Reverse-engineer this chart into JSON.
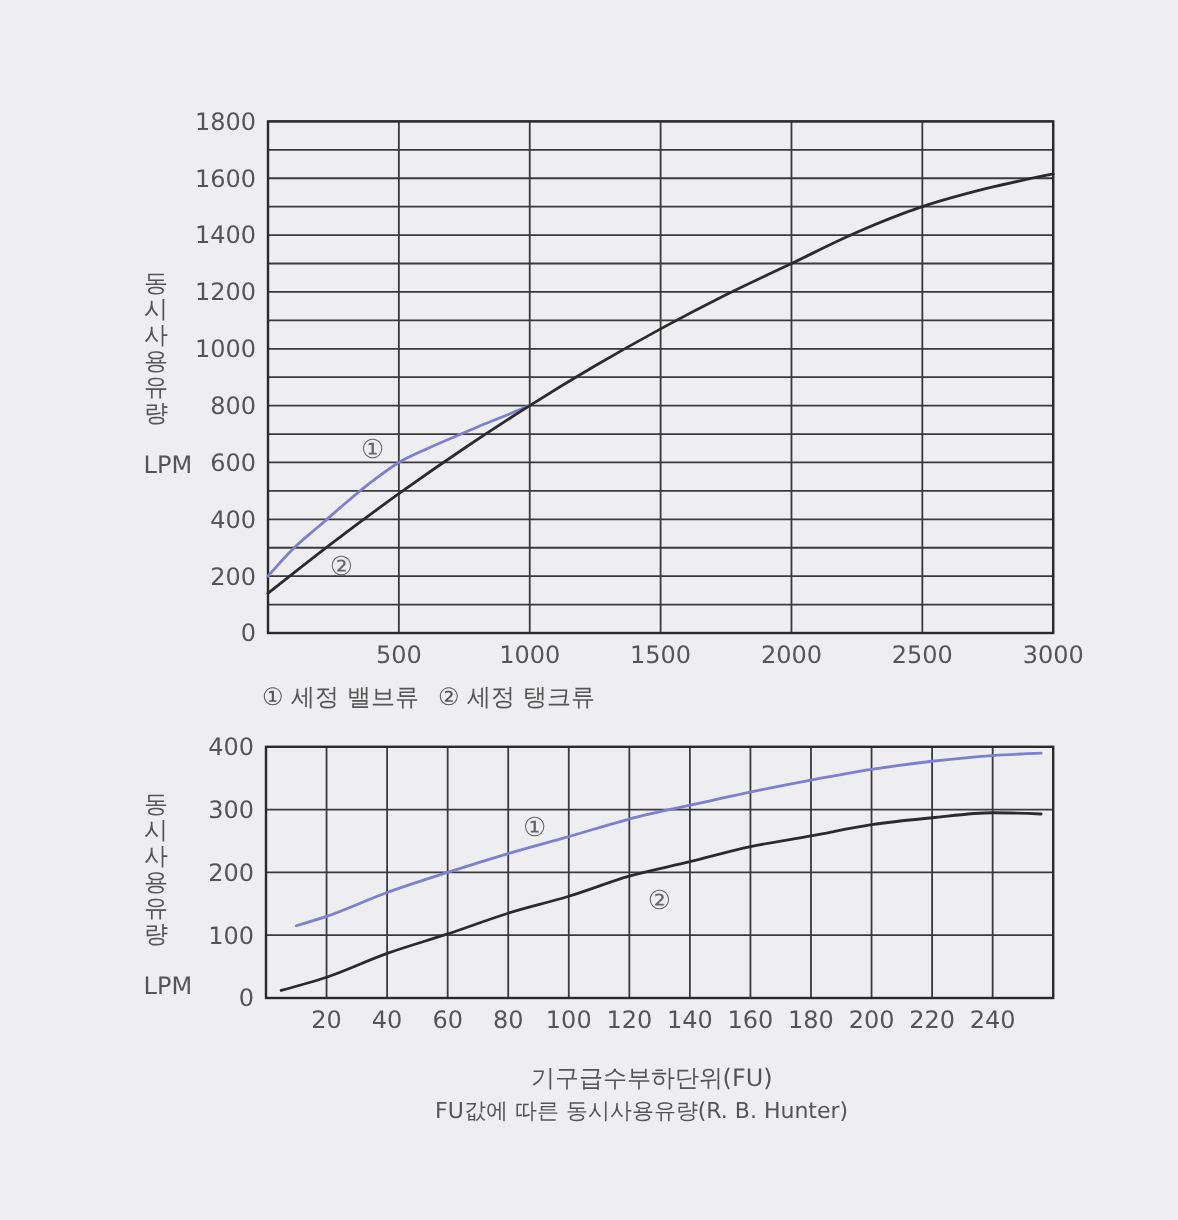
{
  "chart_data": [
    {
      "type": "line",
      "ylabel": "동시사용유량 LPM",
      "xlim": [
        0,
        3000
      ],
      "xticks": [
        500,
        1000,
        1500,
        2000,
        2500,
        3000
      ],
      "ylim": [
        0,
        1800
      ],
      "yticks": [
        0,
        {
          "value": 100,
          "label": null
        },
        200,
        {
          "value": 300,
          "label": null
        },
        400,
        {
          "value": 500,
          "label": null
        },
        600,
        {
          "value": 700,
          "label": null
        },
        800,
        {
          "value": 900,
          "label": null
        },
        1000,
        {
          "value": 1100,
          "label": null
        },
        1200,
        {
          "value": 1300,
          "label": null
        },
        1400,
        {
          "value": 1500,
          "label": null
        },
        1600,
        {
          "value": 1700,
          "label": null
        },
        1800
      ],
      "grid": true,
      "series": [
        {
          "name": "①",
          "color": "#7d7fd3",
          "x": [
            0,
            100,
            200,
            300,
            400,
            500,
            600,
            700,
            800,
            900,
            1000
          ],
          "values": [
            200,
            300,
            380,
            460,
            535,
            600,
            645,
            685,
            725,
            762,
            800
          ]
        },
        {
          "name": "②",
          "color": "#2b2b2b",
          "x": [
            0,
            250,
            500,
            750,
            1000,
            1250,
            1500,
            1750,
            2000,
            2250,
            2500,
            2750,
            3000
          ],
          "values": [
            140,
            320,
            490,
            650,
            800,
            940,
            1070,
            1190,
            1300,
            1410,
            1500,
            1565,
            1615
          ]
        }
      ],
      "annotations": [
        "① 세정 밸브류",
        "② 세정 탱크류"
      ]
    },
    {
      "type": "line",
      "ylabel": "동시사용유량 LPM",
      "xlabel": "기구급수부하단위(FU)",
      "xlim": [
        0,
        260
      ],
      "xticks": [
        20,
        40,
        60,
        80,
        100,
        120,
        140,
        160,
        180,
        200,
        220,
        240
      ],
      "ylim": [
        0,
        400
      ],
      "yticks": [
        0,
        100,
        200,
        300,
        400
      ],
      "grid": true,
      "series": [
        {
          "name": "①",
          "color": "#7d7fd3",
          "x": [
            10,
            20,
            40,
            60,
            80,
            100,
            120,
            140,
            160,
            180,
            200,
            220,
            240,
            256
          ],
          "values": [
            115,
            130,
            168,
            200,
            230,
            257,
            285,
            307,
            328,
            347,
            364,
            377,
            386,
            390
          ]
        },
        {
          "name": "②",
          "color": "#2b2b2b",
          "x": [
            5,
            20,
            40,
            60,
            80,
            100,
            120,
            140,
            160,
            180,
            200,
            220,
            240,
            256
          ],
          "values": [
            12,
            33,
            71,
            102,
            135,
            162,
            194,
            217,
            241,
            258,
            276,
            287,
            295,
            293
          ]
        }
      ],
      "annotations": [
        "FU값에 따른 동시사용유량(R. B. Hunter)"
      ]
    }
  ]
}
